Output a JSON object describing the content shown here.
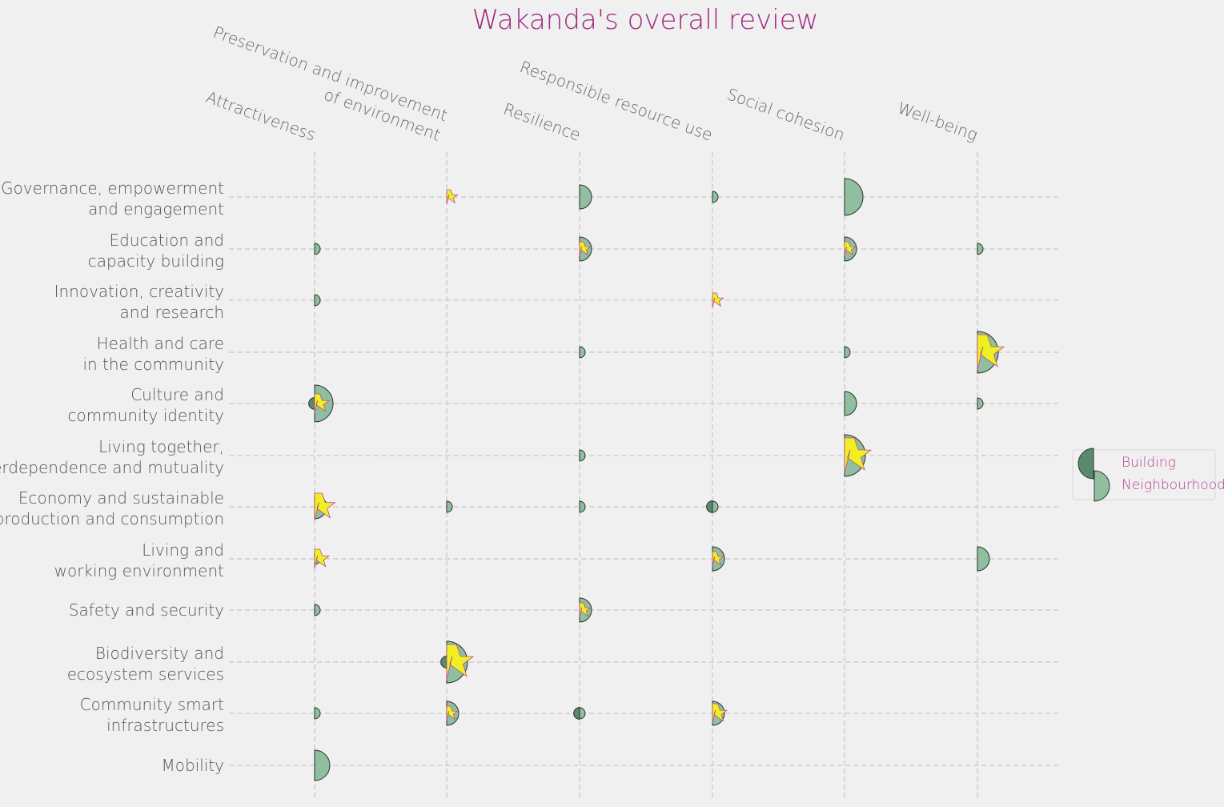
{
  "colors": {
    "title": "#a0267f",
    "building": "#5a8a6e",
    "neighbourhood": "#8fbf9f",
    "star": "#eef021",
    "star_stroke": "#c0478d",
    "grid": "#c8c8c8",
    "legend_text": "#b0428f"
  },
  "chart_data": {
    "type": "scatter",
    "title": "Wakanda's overall review",
    "columns": [
      {
        "label_lines": [
          "Attractiveness"
        ]
      },
      {
        "label_lines": [
          "Preservation and improvement",
          "of environment"
        ]
      },
      {
        "label_lines": [
          "Resilience"
        ]
      },
      {
        "label_lines": [
          "Responsible resource use"
        ]
      },
      {
        "label_lines": [
          "Social cohesion"
        ]
      },
      {
        "label_lines": [
          "Well-being"
        ]
      }
    ],
    "rows": [
      {
        "label_lines": [
          "Governance, empowerment",
          "and engagement"
        ]
      },
      {
        "label_lines": [
          "Education and",
          "capacity building"
        ]
      },
      {
        "label_lines": [
          "Innovation, creativity",
          "and research"
        ]
      },
      {
        "label_lines": [
          "Health and care",
          "in the community"
        ]
      },
      {
        "label_lines": [
          "Culture and",
          "community identity"
        ]
      },
      {
        "label_lines": [
          "Living together,",
          "interdependence and mutuality"
        ]
      },
      {
        "label_lines": [
          "Economy and sustainable",
          "production and consumption"
        ]
      },
      {
        "label_lines": [
          "Living and",
          "working environment"
        ]
      },
      {
        "label_lines": [
          "Safety and security"
        ]
      },
      {
        "label_lines": [
          "Biodiversity and",
          "ecosystem services"
        ]
      },
      {
        "label_lines": [
          "Community smart",
          "infrastructures"
        ]
      },
      {
        "label_lines": [
          "Mobility"
        ]
      }
    ],
    "legend": [
      {
        "series": "building",
        "label": "Building"
      },
      {
        "series": "neighbourhood",
        "label": "Neighbourhood"
      }
    ],
    "legend_position": "right",
    "points": [
      {
        "row": 0,
        "col": 1,
        "building": 0,
        "neighbourhood": 0,
        "star": 2
      },
      {
        "row": 0,
        "col": 2,
        "building": 0,
        "neighbourhood": 2,
        "star": 0
      },
      {
        "row": 0,
        "col": 3,
        "building": 0,
        "neighbourhood": 1,
        "star": 0
      },
      {
        "row": 0,
        "col": 4,
        "building": 0,
        "neighbourhood": 4,
        "star": 0
      },
      {
        "row": 1,
        "col": 0,
        "building": 0,
        "neighbourhood": 1,
        "star": 0
      },
      {
        "row": 1,
        "col": 2,
        "building": 0,
        "neighbourhood": 2,
        "star": 2
      },
      {
        "row": 1,
        "col": 4,
        "building": 0,
        "neighbourhood": 2,
        "star": 2
      },
      {
        "row": 1,
        "col": 5,
        "building": 0,
        "neighbourhood": 1,
        "star": 0
      },
      {
        "row": 2,
        "col": 0,
        "building": 0,
        "neighbourhood": 1,
        "star": 0
      },
      {
        "row": 2,
        "col": 3,
        "building": 0,
        "neighbourhood": 0,
        "star": 2
      },
      {
        "row": 3,
        "col": 2,
        "building": 0,
        "neighbourhood": 1,
        "star": 0
      },
      {
        "row": 3,
        "col": 4,
        "building": 0,
        "neighbourhood": 1,
        "star": 0
      },
      {
        "row": 3,
        "col": 5,
        "building": 0,
        "neighbourhood": 5,
        "star": 5
      },
      {
        "row": 4,
        "col": 0,
        "building": 1,
        "neighbourhood": 4,
        "star": 3
      },
      {
        "row": 4,
        "col": 4,
        "building": 0,
        "neighbourhood": 2,
        "star": 0
      },
      {
        "row": 4,
        "col": 5,
        "building": 0,
        "neighbourhood": 1,
        "star": 0
      },
      {
        "row": 5,
        "col": 2,
        "building": 0,
        "neighbourhood": 1,
        "star": 0
      },
      {
        "row": 5,
        "col": 4,
        "building": 0,
        "neighbourhood": 5,
        "star": 5
      },
      {
        "row": 6,
        "col": 0,
        "building": 0,
        "neighbourhood": 2,
        "star": 4
      },
      {
        "row": 6,
        "col": 1,
        "building": 0,
        "neighbourhood": 1,
        "star": 0
      },
      {
        "row": 6,
        "col": 2,
        "building": 0,
        "neighbourhood": 1,
        "star": 0
      },
      {
        "row": 6,
        "col": 3,
        "building": 1,
        "neighbourhood": 1,
        "star": 0
      },
      {
        "row": 7,
        "col": 0,
        "building": 0,
        "neighbourhood": 1,
        "star": 3
      },
      {
        "row": 7,
        "col": 3,
        "building": 0,
        "neighbourhood": 2,
        "star": 2
      },
      {
        "row": 7,
        "col": 5,
        "building": 0,
        "neighbourhood": 2,
        "star": 0
      },
      {
        "row": 8,
        "col": 0,
        "building": 0,
        "neighbourhood": 1,
        "star": 0
      },
      {
        "row": 8,
        "col": 2,
        "building": 0,
        "neighbourhood": 2,
        "star": 2
      },
      {
        "row": 9,
        "col": 1,
        "building": 1,
        "neighbourhood": 5,
        "star": 5
      },
      {
        "row": 10,
        "col": 0,
        "building": 0,
        "neighbourhood": 1,
        "star": 0
      },
      {
        "row": 10,
        "col": 1,
        "building": 0,
        "neighbourhood": 2,
        "star": 2
      },
      {
        "row": 10,
        "col": 2,
        "building": 1,
        "neighbourhood": 1,
        "star": 0
      },
      {
        "row": 10,
        "col": 3,
        "building": 0,
        "neighbourhood": 2,
        "star": 3
      },
      {
        "row": 11,
        "col": 0,
        "building": 0,
        "neighbourhood": 3,
        "star": 0
      }
    ]
  }
}
